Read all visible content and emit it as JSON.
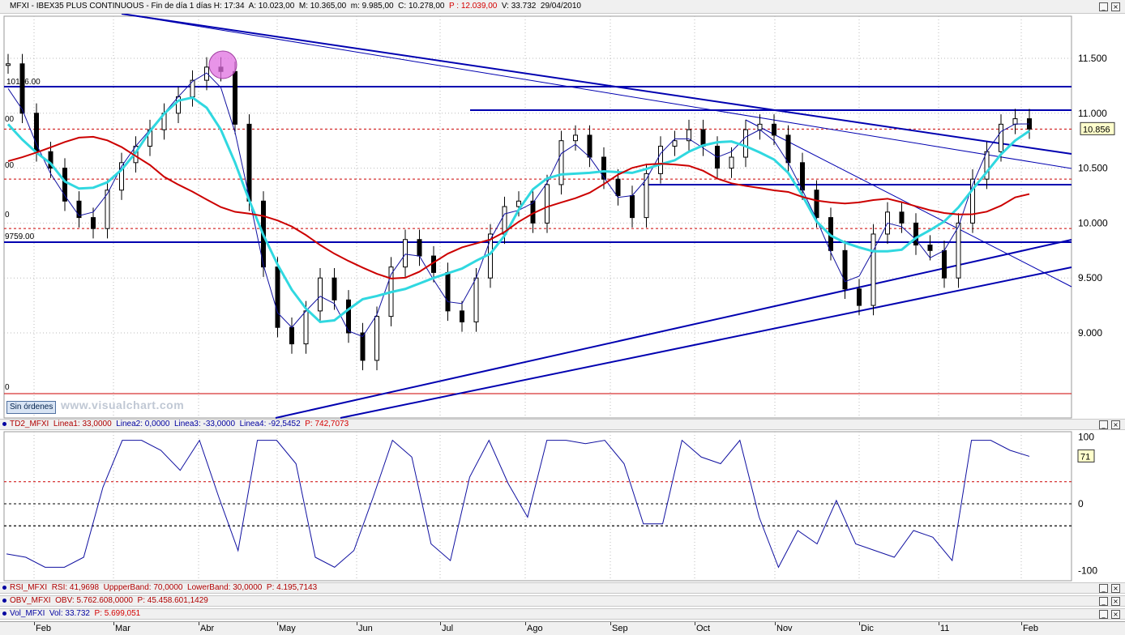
{
  "header": {
    "title": "MFXI - IBEX35 PLUS CONTINUOUS - Fin de día 1 días",
    "h": "H: 17:34",
    "a": "A: 10.023,00",
    "max": "M: 10.365,00",
    "min": "m: 9.985,00",
    "c": "C: 10.278,00",
    "p": "P : 12.039,00",
    "v": "V: 33.732",
    "date": "29/04/2010"
  },
  "main_panel": {
    "sin_ordenes": "Sin órdenes",
    "watermark": "www.visualchart.com",
    "last_price_label": "10.856",
    "level_labels": [
      "10196.00",
      "9759.00",
      "00",
      "00",
      "0",
      "0"
    ]
  },
  "td_panel": {
    "label": "TD2_MFXI",
    "l1": "Linea1: 33,0000",
    "l2": "Linea2: 0,0000",
    "l3": "Linea3: -33,0000",
    "l4": "Linea4: -92,5452",
    "p": "P: 742,7073",
    "last_value": "71",
    "y_ticks": [
      "100",
      "0",
      "-100"
    ]
  },
  "strips": {
    "rsi": {
      "name": "RSI_MFXI",
      "text": "RSI: 41,9698",
      "upper": "UppperBand: 70,0000",
      "lower": "LowerBand: 30,0000",
      "p": "P: 4.195,7143"
    },
    "obv": {
      "name": "OBV_MFXI",
      "text": "OBV: 5.762.608,0000",
      "p": "P: 45.458.601,1429"
    },
    "vol": {
      "name": "Vol_MFXI",
      "text": "Vol: 33.732",
      "p": "P: 5.699,051"
    }
  },
  "months": [
    "Feb",
    "Mar",
    "Abr",
    "May",
    "Jun",
    "Jul",
    "Ago",
    "Sep",
    "Oct",
    "Nov",
    "Dic",
    "11",
    "Feb"
  ],
  "colors": {
    "price_line": "#1010a0",
    "trend": "#0000b0",
    "ma_red": "#cc0000",
    "ma_cyan": "#30d8e0",
    "ref_red": "#cc0000",
    "highlight": "#e070e0"
  },
  "chart_data": [
    {
      "type": "candlestick",
      "title": "MFXI - IBEX35 PLUS CONTINUOUS",
      "y_ticks": [
        "11.500",
        "11.000",
        "10.500",
        "10.000",
        "9.500",
        "9.000"
      ],
      "ylim": [
        8500,
        11900
      ],
      "x": [
        "Feb",
        "Mar",
        "Abr",
        "May",
        "Jun",
        "Jul",
        "Ago",
        "Sep",
        "Oct",
        "Nov",
        "Dic",
        "11",
        "Feb"
      ],
      "close_series": [
        11450,
        11000,
        10650,
        10500,
        10200,
        10050,
        9950,
        10300,
        10550,
        10700,
        10850,
        11000,
        11150,
        11300,
        11420,
        11380,
        10900,
        10200,
        9600,
        9050,
        8900,
        9200,
        9500,
        9300,
        9000,
        8750,
        9150,
        9600,
        9850,
        9700,
        9550,
        9200,
        9100,
        9500,
        9900,
        10150,
        10200,
        10000,
        10350,
        10750,
        10800,
        10600,
        10400,
        10250,
        10050,
        10450,
        10700,
        10750,
        10850,
        10700,
        10500,
        10600,
        10850,
        10900,
        10800,
        10550,
        10300,
        10050,
        9750,
        9400,
        9250,
        9900,
        10100,
        10000,
        9800,
        9750,
        9500,
        10000,
        10400,
        10650,
        10900,
        10950,
        10856
      ],
      "horizontal_levels": [
        11210,
        10960,
        10280,
        9759
      ],
      "resistance_levels_red": [
        10856,
        10400,
        9950
      ],
      "bottom_line": 8600,
      "last": 10856
    },
    {
      "type": "line",
      "title": "TD2_MFXI",
      "ylim": [
        -115,
        115
      ],
      "bands": [
        33,
        0,
        -33
      ],
      "values": [
        -75,
        -80,
        -95,
        -95,
        -80,
        25,
        95,
        95,
        80,
        50,
        95,
        10,
        -70,
        95,
        95,
        60,
        -80,
        -95,
        -70,
        10,
        95,
        70,
        -60,
        -85,
        40,
        95,
        30,
        -20,
        95,
        95,
        90,
        95,
        60,
        -30,
        -30,
        95,
        70,
        60,
        95,
        -20,
        -95,
        -40,
        -60,
        5,
        -60,
        -70,
        -80,
        -40,
        -50,
        -85,
        95,
        95,
        80,
        71
      ]
    }
  ]
}
